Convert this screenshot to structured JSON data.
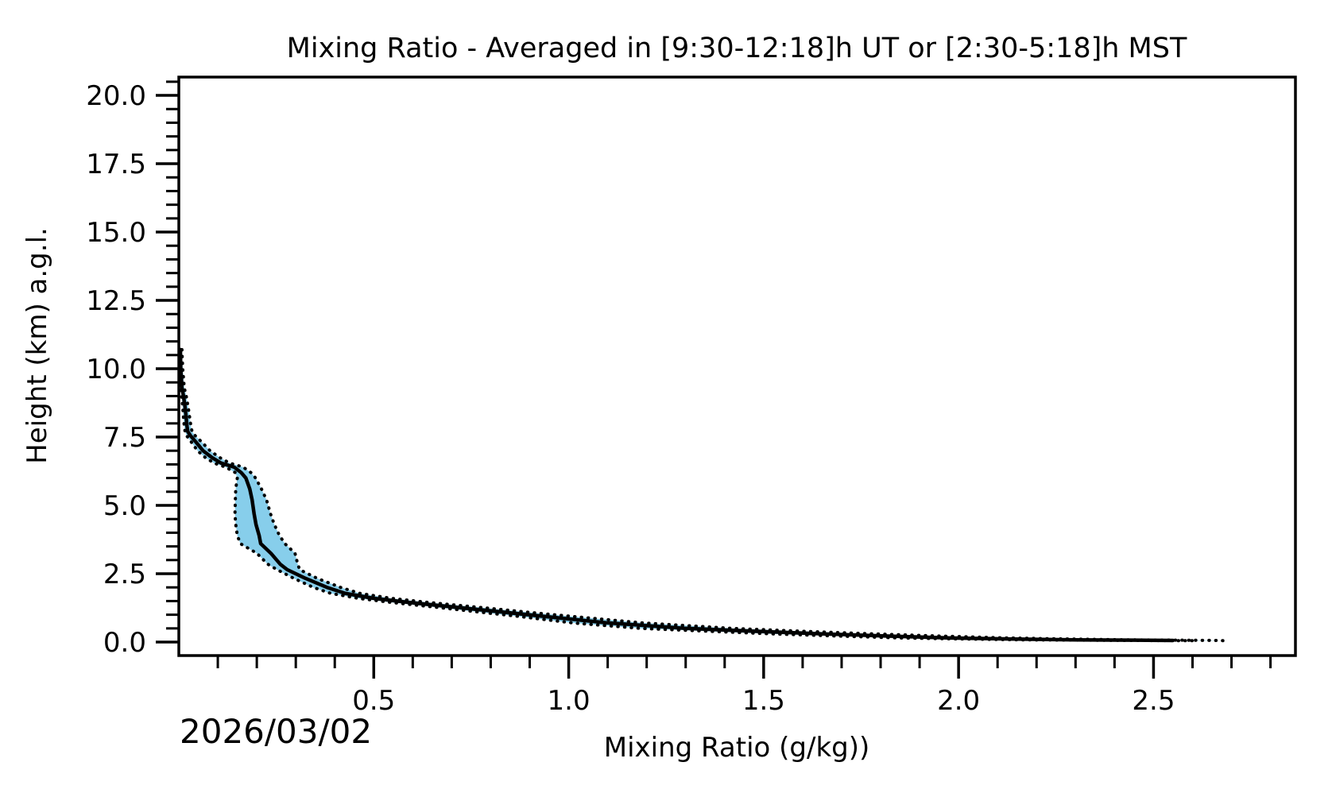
{
  "chart_data": {
    "type": "line",
    "title": "Mixing Ratio - Averaged in [9:30-12:18]h UT or [2:30-5:18]h MST",
    "xlabel": "Mixing Ratio (g/kg))",
    "ylabel": "Height (km) a.g.l.",
    "annotation_date": "2026/03/02",
    "xlim": [
      0.0,
      2.864
    ],
    "ylim": [
      -0.494,
      20.67
    ],
    "grid": "off",
    "legend": "none",
    "x_major_ticks": [
      0.5,
      1.0,
      1.5,
      2.0,
      2.5
    ],
    "x_major_labels": [
      "0.5",
      "1.0",
      "1.5",
      "2.0",
      "2.5"
    ],
    "x_minor_step": 0.1,
    "x_minor_range": [
      0.1,
      2.8
    ],
    "y_major_ticks": [
      0.0,
      2.5,
      5.0,
      7.5,
      10.0,
      12.5,
      15.0,
      17.5,
      20.0
    ],
    "y_major_labels": [
      "0.0",
      "2.5",
      "5.0",
      "7.5",
      "10.0",
      "12.5",
      "15.0",
      "17.5",
      "20.0"
    ],
    "y_minor_step": 0.5,
    "y_minor_range": [
      0.5,
      20.5
    ],
    "series": [
      {
        "name": "mean-mixing-ratio-profile",
        "heights_km": [
          10.7,
          10.0,
          9.3,
          9.0,
          8.6,
          8.2,
          7.9,
          7.7,
          7.55,
          7.3,
          7.0,
          6.75,
          6.55,
          6.4,
          6.2,
          6.0,
          5.6,
          5.2,
          4.7,
          4.3,
          3.9,
          3.6,
          3.25,
          2.85,
          2.65,
          2.33,
          2.0,
          1.78,
          1.6,
          1.45,
          1.25,
          1.05,
          0.95,
          0.7,
          0.5,
          0.4,
          0.3,
          0.22,
          0.15,
          0.11,
          0.08,
          0.07,
          0.06
        ],
        "mean_g_per_kg": [
          0.004,
          0.005,
          0.008,
          0.012,
          0.016,
          0.019,
          0.021,
          0.023,
          0.03,
          0.045,
          0.062,
          0.085,
          0.108,
          0.142,
          0.16,
          0.172,
          0.182,
          0.188,
          0.193,
          0.198,
          0.206,
          0.21,
          0.236,
          0.26,
          0.278,
          0.325,
          0.38,
          0.427,
          0.5,
          0.59,
          0.726,
          0.862,
          0.93,
          1.1,
          1.3,
          1.47,
          1.65,
          1.82,
          1.98,
          2.15,
          2.3,
          2.45,
          2.55
        ],
        "band_lower": [
          0.002,
          0.002,
          0.004,
          0.007,
          0.01,
          0.012,
          0.014,
          0.016,
          0.02,
          0.033,
          0.048,
          0.068,
          0.09,
          0.12,
          0.145,
          0.15,
          0.146,
          0.145,
          0.144,
          0.146,
          0.15,
          0.158,
          0.2,
          0.228,
          0.252,
          0.295,
          0.345,
          0.39,
          0.46,
          0.545,
          0.675,
          0.8,
          0.865,
          1.01,
          1.185,
          1.35,
          1.52,
          1.69,
          1.85,
          2.02,
          2.17,
          2.32,
          2.43
        ],
        "band_upper": [
          0.008,
          0.01,
          0.014,
          0.019,
          0.024,
          0.028,
          0.031,
          0.034,
          0.042,
          0.06,
          0.08,
          0.105,
          0.13,
          0.165,
          0.185,
          0.197,
          0.212,
          0.225,
          0.235,
          0.245,
          0.258,
          0.272,
          0.298,
          0.305,
          0.31,
          0.355,
          0.415,
          0.465,
          0.545,
          0.64,
          0.785,
          0.925,
          1.0,
          1.19,
          1.42,
          1.59,
          1.78,
          1.95,
          2.12,
          2.29,
          2.44,
          2.56,
          2.66
        ],
        "band_tail": {
          "height_km": 0.05,
          "lower": 2.6,
          "upper": 2.68
        }
      }
    ],
    "colors": {
      "line": "#000000",
      "band_fill": "#87CEEB",
      "band_edge": "#000000",
      "spine": "#000000",
      "background": "#ffffff"
    }
  }
}
